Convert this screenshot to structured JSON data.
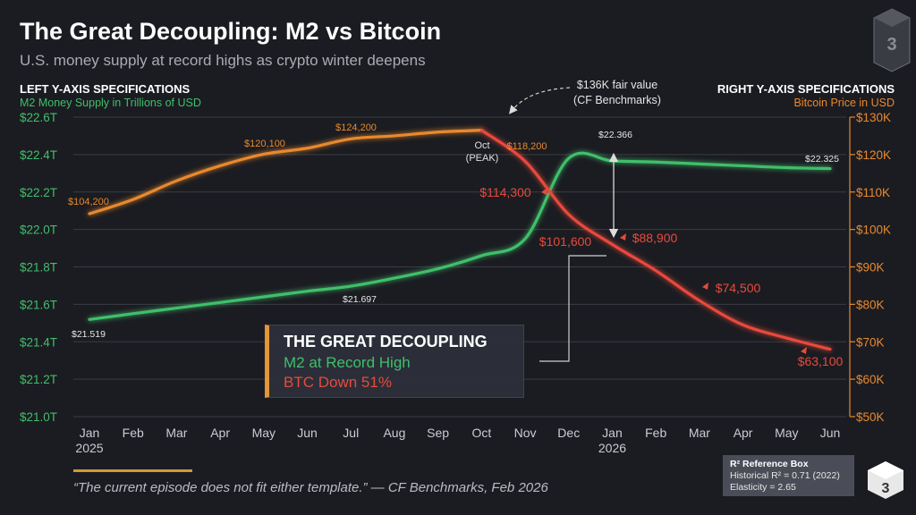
{
  "header": {
    "title": "The Great Decoupling: M2 vs Bitcoin",
    "subtitle": "U.S. money supply at record highs as crypto winter deepens"
  },
  "left_spec": {
    "heading": "LEFT Y-AXIS SPECIFICATIONS",
    "description": "M2 Money Supply in Trillions of USD"
  },
  "right_spec": {
    "heading": "RIGHT Y-AXIS SPECIFICATIONS",
    "description": "Bitcoin Price in USD"
  },
  "callout": {
    "line1": "THE GREAT DECOUPLING",
    "line2": "M2 at Record High",
    "line3": "BTC Down 51%"
  },
  "fair_value_note": {
    "line1": "$136K fair value",
    "line2": "(CF Benchmarks)"
  },
  "peak_label": {
    "line1": "Oct",
    "line2": "(PEAK)"
  },
  "quote": "“The current episode does not fit either template.” — CF Benchmarks, Feb 2026",
  "reference_box": {
    "title": "R² Reference Box",
    "line1": "Historical R² = 0.71 (2022)",
    "line2": "Elasticity = 2.65"
  },
  "colors": {
    "m2": "#3fbf6b",
    "btc_up": "#e8892f",
    "btc_down": "#e84a3c",
    "grid": "#3a3c45",
    "background": "#1b1c21"
  },
  "chart_data": {
    "type": "line",
    "x": [
      "Jan",
      "Feb",
      "Mar",
      "Apr",
      "May",
      "Jun",
      "Jul",
      "Aug",
      "Sep",
      "Oct",
      "Nov",
      "Dec",
      "Jan",
      "Feb",
      "Mar",
      "Apr",
      "May",
      "Jun"
    ],
    "x_year_labels": [
      {
        "index": 0,
        "label": "2025"
      },
      {
        "index": 12,
        "label": "2026"
      }
    ],
    "y_left": {
      "ticks": [
        "$21.0T",
        "$21.2T",
        "$21.4T",
        "$21.6T",
        "$21.8T",
        "$22.0T",
        "$22.2T",
        "$22.4T",
        "$22.6T"
      ],
      "range": [
        21.0,
        22.6
      ]
    },
    "y_right": {
      "ticks": [
        "$50K",
        "$60K",
        "$70K",
        "$80K",
        "$90K",
        "$100K",
        "$110K",
        "$120K",
        "$130K"
      ],
      "range": [
        50000,
        130000
      ]
    },
    "grid": true,
    "series": [
      {
        "axis": "left",
        "values": [
          21.519,
          21.55,
          21.58,
          21.61,
          21.64,
          21.67,
          21.697,
          21.74,
          21.79,
          21.86,
          21.95,
          22.38,
          22.366,
          22.36,
          22.35,
          22.34,
          22.33,
          22.325
        ]
      },
      {
        "axis": "right",
        "values": [
          104200,
          108000,
          113000,
          117000,
          120100,
          121700,
          124200,
          125000,
          126000,
          126500,
          118200,
          104000,
          96000,
          89000,
          81000,
          74500,
          71000,
          68000
        ]
      }
    ],
    "data_labels": [
      {
        "series": 0,
        "index": 0,
        "text": "$21.519"
      },
      {
        "series": 0,
        "index": 6,
        "text": "$21.697"
      },
      {
        "series": 0,
        "index": 12,
        "text": "$22.366"
      },
      {
        "series": 0,
        "index": 17,
        "text": "$22.325"
      },
      {
        "series": 1,
        "index": 0,
        "text": "$104,200"
      },
      {
        "series": 1,
        "index": 4,
        "text": "$120,100"
      },
      {
        "series": 1,
        "index": 6,
        "text": "$124,200"
      },
      {
        "series": 1,
        "index": 10,
        "text": "$118,200"
      },
      {
        "series": 1,
        "text": "$114,300"
      },
      {
        "series": 1,
        "text": "$101,600"
      },
      {
        "series": 1,
        "text": "$88,900"
      },
      {
        "series": 1,
        "text": "$74,500"
      },
      {
        "series": 1,
        "text": "$63,100"
      }
    ]
  }
}
